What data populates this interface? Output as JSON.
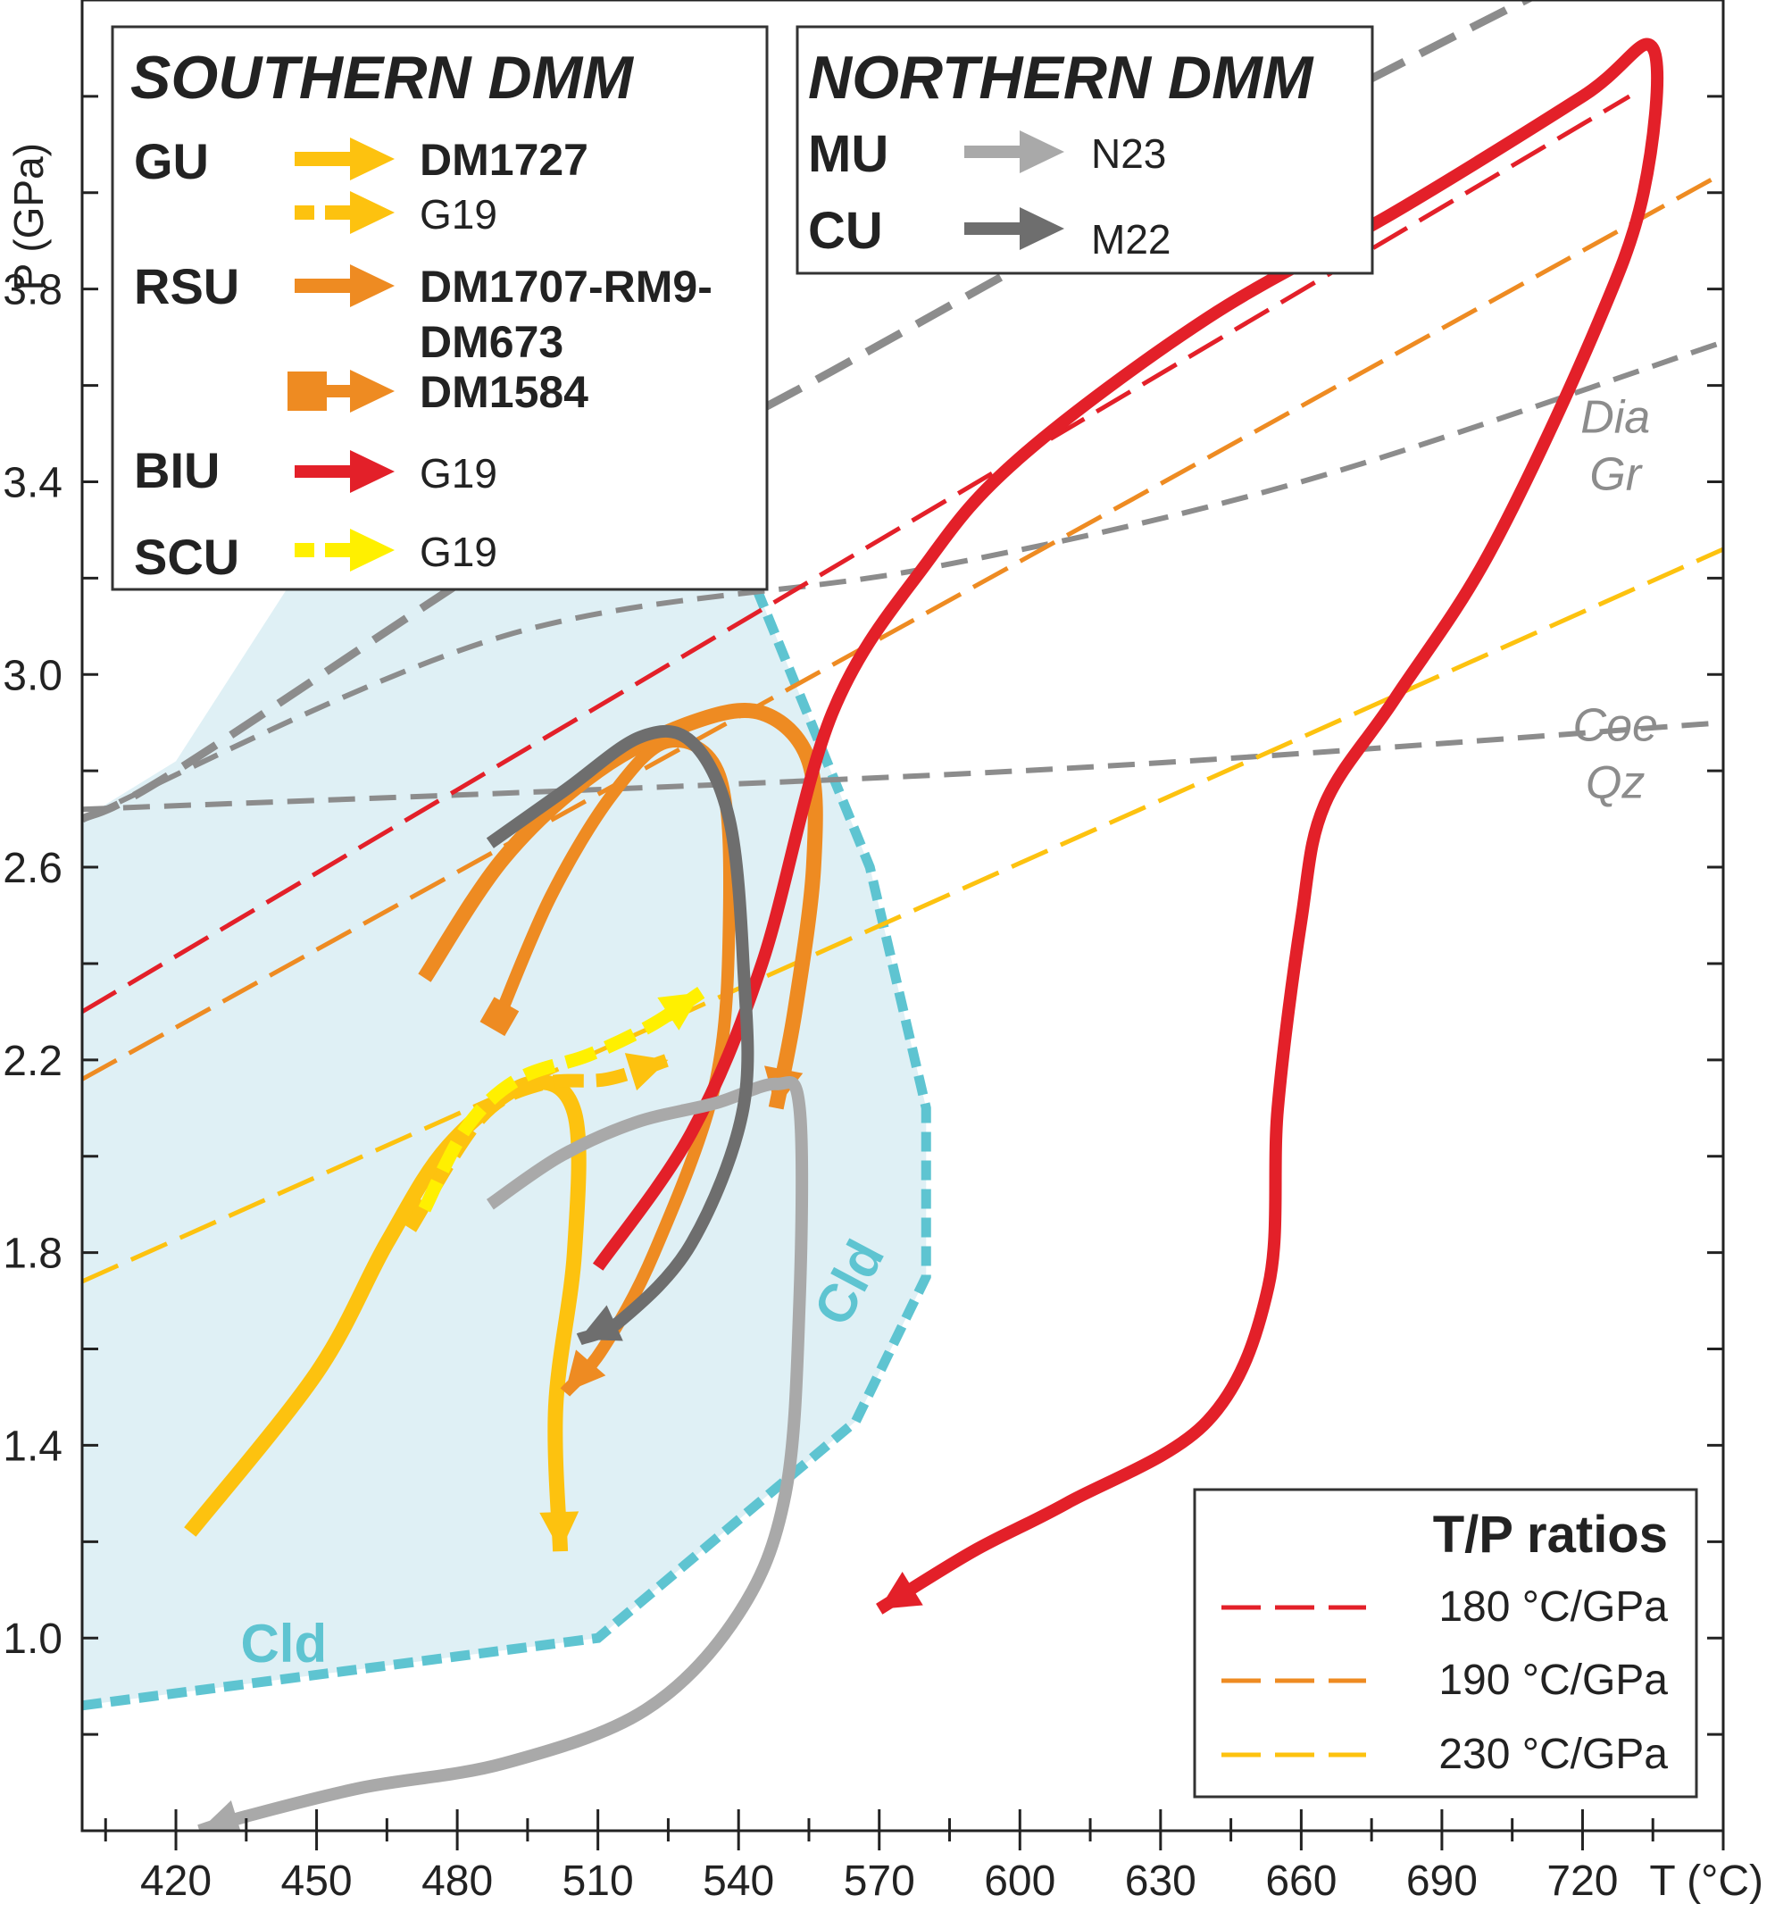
{
  "chart_data": {
    "type": "line",
    "title": "",
    "xlabel": "T (°C)",
    "ylabel": "P (GPa)",
    "xlim": [
      400,
      750
    ],
    "ylim": [
      0.6,
      4.4
    ],
    "x_ticks": [
      420,
      450,
      480,
      510,
      540,
      570,
      600,
      630,
      660,
      690,
      720
    ],
    "y_ticks": [
      1.0,
      1.4,
      1.8,
      2.2,
      2.6,
      3.0,
      3.4,
      3.8
    ],
    "grid": false,
    "colors": {
      "red": "#e32029",
      "orange": "#ee8b22",
      "yellow_orange": "#fdc20f",
      "yellow": "#fff000",
      "light_gray": "#a9a9a9",
      "dark_gray": "#6e6e6e",
      "reaction": "#8c8c8c",
      "cld_field": "#dff0f5",
      "cld_boundary": "#5ec4d1"
    },
    "legend_southern": {
      "heading": "SOUTHERN DMM",
      "position": "top-left",
      "rows": [
        {
          "unit": "GU",
          "label": "DM1727",
          "color": "#fdc20f",
          "style": "solid-bold"
        },
        {
          "unit": "",
          "label": "G19",
          "color": "#fdc20f",
          "style": "dashed"
        },
        {
          "unit": "RSU",
          "label": "DM1707-RM9-",
          "label2": "DM673",
          "color": "#ee8b22",
          "style": "solid-bold"
        },
        {
          "unit": "",
          "label": "DM1584",
          "color": "#ee8b22",
          "style": "square-tail"
        },
        {
          "unit": "BIU",
          "label": "G19",
          "color": "#e32029",
          "style": "solid"
        },
        {
          "unit": "SCU",
          "label": "G19",
          "color": "#fff000",
          "style": "dashed"
        }
      ]
    },
    "legend_northern": {
      "heading": "NORTHERN DMM",
      "position": "top-center",
      "rows": [
        {
          "unit": "MU",
          "label": "N23",
          "color": "#a9a9a9"
        },
        {
          "unit": "CU",
          "label": "M22",
          "color": "#6e6e6e"
        }
      ]
    },
    "legend_ratios": {
      "heading": "T/P ratios",
      "position": "bottom-right",
      "rows": [
        {
          "label": "180 °C/GPa",
          "color": "#e32029",
          "ratio": 180
        },
        {
          "label": "190 °C/GPa",
          "color": "#ee8b22",
          "ratio": 190
        },
        {
          "label": "230 °C/GPa",
          "color": "#fdc20f",
          "ratio": 230
        }
      ]
    },
    "reaction_lines": [
      {
        "upper": "Dia",
        "lower": "Gr",
        "points": [
          [
            400,
            2.7
          ],
          [
            490,
            3.08
          ],
          [
            580,
            3.22
          ],
          [
            660,
            3.4
          ],
          [
            750,
            3.69
          ]
        ],
        "label_at": [
          727,
          3.48
        ]
      },
      {
        "upper": "Coe",
        "lower": "Qz",
        "points": [
          [
            400,
            2.72
          ],
          [
            600,
            2.8
          ],
          [
            750,
            2.9
          ]
        ],
        "label_at": [
          727,
          2.84
        ]
      },
      {
        "upper": "",
        "lower": "",
        "points": [
          [
            400,
            2.7
          ],
          [
            420,
            2.8
          ],
          [
            500,
            3.31
          ],
          [
            560,
            3.63
          ],
          [
            640,
            4.06
          ],
          [
            718,
            4.45
          ]
        ],
        "label_at": null
      }
    ],
    "cld_field": {
      "label": "Cld",
      "boundary": [
        [
          400,
          0.86
        ],
        [
          510,
          1.0
        ],
        [
          565,
          1.45
        ],
        [
          580,
          1.75
        ],
        [
          580,
          2.1
        ],
        [
          568,
          2.6
        ],
        [
          540,
          3.27
        ]
      ],
      "label_at": [
        [
          443,
          0.95
        ],
        [
          567,
          1.72
        ]
      ]
    },
    "series": [
      {
        "name": "DM1727",
        "color": "#fdc20f",
        "style": "solid-bold",
        "points": [
          [
            423,
            1.22
          ],
          [
            450,
            1.55
          ],
          [
            465,
            1.82
          ],
          [
            478,
            2.02
          ],
          [
            495,
            2.15
          ],
          [
            505,
            2.09
          ],
          [
            505,
            1.8
          ],
          [
            501,
            1.48
          ],
          [
            502,
            1.18
          ]
        ]
      },
      {
        "name": "G19",
        "color": "#fdc20f",
        "style": "dashed",
        "points": [
          [
            470,
            1.85
          ],
          [
            485,
            2.08
          ],
          [
            498,
            2.15
          ],
          [
            512,
            2.16
          ],
          [
            525,
            2.2
          ]
        ]
      },
      {
        "name": "DM1707-RM9-DM673",
        "color": "#ee8b22",
        "style": "solid-bold",
        "points": [
          [
            473,
            2.37
          ],
          [
            490,
            2.62
          ],
          [
            510,
            2.8
          ],
          [
            530,
            2.9
          ],
          [
            545,
            2.92
          ],
          [
            555,
            2.82
          ],
          [
            556,
            2.6
          ],
          [
            552,
            2.3
          ],
          [
            548,
            2.1
          ]
        ]
      },
      {
        "name": "DM1584",
        "color": "#ee8b22",
        "style": "square-tail",
        "points": [
          [
            489,
            2.29
          ],
          [
            500,
            2.54
          ],
          [
            513,
            2.75
          ],
          [
            525,
            2.86
          ],
          [
            536,
            2.79
          ],
          [
            538,
            2.5
          ],
          [
            535,
            2.15
          ],
          [
            522,
            1.8
          ],
          [
            511,
            1.6
          ],
          [
            503,
            1.51
          ]
        ]
      },
      {
        "name": "G19",
        "color": "#e32029",
        "style": "solid",
        "points": [
          [
            510,
            1.77
          ],
          [
            530,
            2.05
          ],
          [
            545,
            2.4
          ],
          [
            560,
            2.92
          ],
          [
            580,
            3.23
          ],
          [
            600,
            3.45
          ],
          [
            640,
            3.74
          ],
          [
            680,
            3.96
          ],
          [
            720,
            4.2
          ],
          [
            735,
            4.3
          ],
          [
            733,
            4.0
          ],
          [
            722,
            3.7
          ],
          [
            700,
            3.25
          ],
          [
            680,
            2.95
          ],
          [
            665,
            2.73
          ],
          [
            660,
            2.49
          ],
          [
            655,
            2.1
          ],
          [
            653,
            1.73
          ],
          [
            640,
            1.45
          ],
          [
            610,
            1.28
          ],
          [
            590,
            1.18
          ],
          [
            570,
            1.06
          ]
        ]
      },
      {
        "name": "G19",
        "color": "#fff000",
        "style": "dashed",
        "points": [
          [
            473,
            1.89
          ],
          [
            482,
            2.06
          ],
          [
            493,
            2.16
          ],
          [
            508,
            2.21
          ],
          [
            521,
            2.27
          ],
          [
            532,
            2.34
          ]
        ]
      },
      {
        "name": "N23",
        "color": "#a9a9a9",
        "style": "solid",
        "points": [
          [
            487,
            1.9
          ],
          [
            502,
            2.0
          ],
          [
            518,
            2.07
          ],
          [
            535,
            2.11
          ],
          [
            548,
            2.15
          ],
          [
            553,
            2.1
          ],
          [
            553,
            1.7
          ],
          [
            550,
            1.3
          ],
          [
            540,
            1.05
          ],
          [
            520,
            0.85
          ],
          [
            490,
            0.74
          ],
          [
            460,
            0.69
          ],
          [
            435,
            0.63
          ],
          [
            425,
            0.6
          ]
        ]
      },
      {
        "name": "M22",
        "color": "#6e6e6e",
        "style": "solid",
        "points": [
          [
            487,
            2.65
          ],
          [
            503,
            2.76
          ],
          [
            519,
            2.87
          ],
          [
            530,
            2.86
          ],
          [
            538,
            2.7
          ],
          [
            541,
            2.4
          ],
          [
            541,
            2.1
          ],
          [
            530,
            1.82
          ],
          [
            515,
            1.66
          ],
          [
            506,
            1.62
          ]
        ]
      }
    ],
    "ratio_lines": [
      {
        "ratio": 180,
        "color": "#e32029",
        "points": [
          [
            400,
            2.3
          ],
          [
            730,
            4.2
          ]
        ]
      },
      {
        "ratio": 190,
        "color": "#ee8b22",
        "points": [
          [
            400,
            2.16
          ],
          [
            748,
            4.03
          ]
        ]
      },
      {
        "ratio": 230,
        "color": "#fdc20f",
        "points": [
          [
            400,
            1.74
          ],
          [
            750,
            3.26
          ]
        ]
      }
    ]
  }
}
